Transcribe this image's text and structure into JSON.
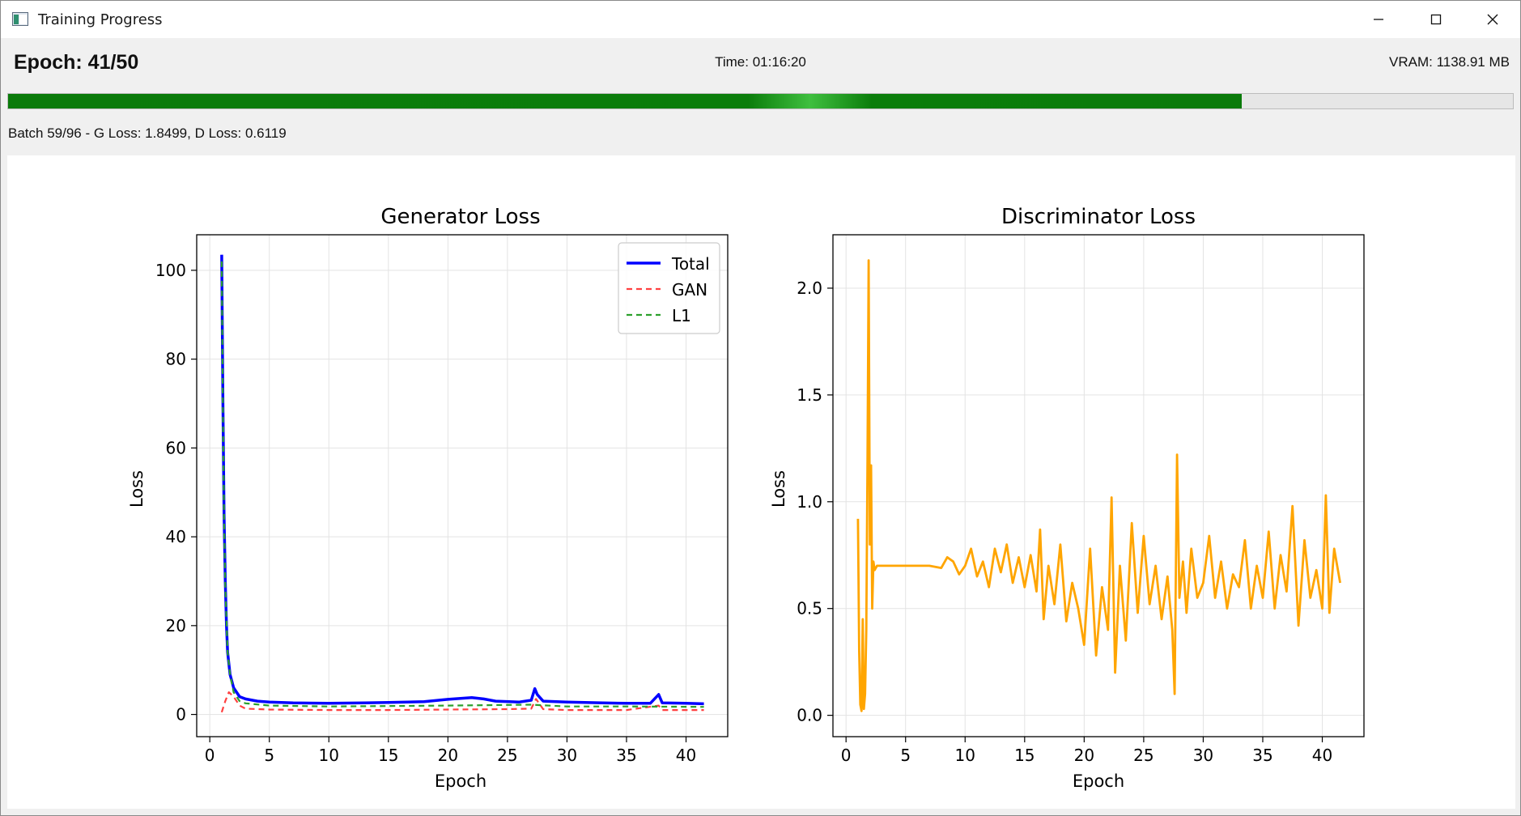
{
  "window": {
    "title": "Training Progress",
    "icon": "app-window-icon"
  },
  "status": {
    "epoch": "Epoch: 41/50",
    "time": "Time: 01:16:20",
    "vram": "VRAM: 1138.91 MB",
    "batch": "Batch 59/96 - G Loss: 1.8499, D Loss: 0.6119",
    "progress_fraction": 0.82
  },
  "colors": {
    "progress": "#0a7a0a",
    "total": "#0000ff",
    "gan": "#ff4040",
    "l1": "#2ca02c",
    "disc": "#ffa500"
  },
  "chart_data": [
    {
      "type": "line",
      "title": "Generator Loss",
      "xlabel": "Epoch",
      "ylabel": "Loss",
      "xlim": [
        -1.1,
        43.5
      ],
      "ylim": [
        -5,
        108
      ],
      "xticks": [
        0,
        5,
        10,
        15,
        20,
        25,
        30,
        35,
        40
      ],
      "yticks": [
        0,
        20,
        40,
        60,
        80,
        100
      ],
      "grid": true,
      "legend": "top-right",
      "series": [
        {
          "name": "Total",
          "style": "solid",
          "x": [
            1,
            1.1,
            1.2,
            1.3,
            1.4,
            1.5,
            1.7,
            2,
            2.5,
            3,
            4,
            5,
            7,
            10,
            13,
            15,
            18,
            20,
            22,
            23,
            24,
            26,
            27,
            27.3,
            27.5,
            28,
            30,
            33,
            35,
            37,
            37.7,
            38,
            40,
            41.5
          ],
          "y": [
            103.5,
            70,
            45,
            30,
            20,
            14,
            9,
            6,
            4,
            3.5,
            3,
            2.8,
            2.6,
            2.5,
            2.6,
            2.7,
            2.9,
            3.4,
            3.8,
            3.5,
            3.0,
            2.8,
            3.2,
            5.8,
            4.5,
            3.0,
            2.8,
            2.6,
            2.5,
            2.5,
            4.5,
            2.6,
            2.5,
            2.4
          ]
        },
        {
          "name": "GAN",
          "style": "dashed",
          "x": [
            1,
            1.3,
            1.6,
            2,
            2.5,
            3,
            5,
            10,
            15,
            20,
            25,
            27,
            27.4,
            28,
            30,
            35,
            37.7,
            38,
            41.5
          ],
          "y": [
            0.5,
            3,
            5,
            4,
            2,
            1.3,
            1.1,
            1.0,
            1.0,
            1.1,
            1.2,
            1.3,
            3.5,
            1.2,
            1.0,
            1.0,
            2.0,
            1.0,
            1.0
          ]
        },
        {
          "name": "L1",
          "style": "dashed",
          "x": [
            1,
            1.1,
            1.2,
            1.3,
            1.5,
            1.7,
            2,
            2.5,
            3,
            5,
            10,
            20,
            27,
            30,
            35,
            41.5
          ],
          "y": [
            102,
            68,
            44,
            29,
            14,
            9,
            5,
            3,
            2.5,
            2,
            1.8,
            2.0,
            2.2,
            1.8,
            1.8,
            1.7
          ]
        }
      ]
    },
    {
      "type": "line",
      "title": "Discriminator Loss",
      "xlabel": "Epoch",
      "ylabel": "Loss",
      "xlim": [
        -1.1,
        43.5
      ],
      "ylim": [
        -0.1,
        2.25
      ],
      "xticks": [
        0,
        5,
        10,
        15,
        20,
        25,
        30,
        35,
        40
      ],
      "yticks": [
        0.0,
        0.5,
        1.0,
        1.5,
        2.0
      ],
      "grid": true,
      "series": [
        {
          "x": [
            1,
            1.1,
            1.2,
            1.3,
            1.4,
            1.5,
            1.6,
            1.7,
            1.8,
            1.9,
            2.0,
            2.1,
            2.2,
            2.3,
            2.4,
            2.6,
            3,
            4,
            5,
            6,
            7,
            8,
            8.5,
            9,
            9.5,
            10,
            10.5,
            11,
            11.5,
            12,
            12.5,
            13,
            13.5,
            14,
            14.5,
            15,
            15.5,
            16,
            16.3,
            16.6,
            17,
            17.5,
            18,
            18.5,
            19,
            19.5,
            20,
            20.5,
            21,
            21.5,
            22,
            22.3,
            22.6,
            23,
            23.5,
            24,
            24.5,
            25,
            25.5,
            26,
            26.5,
            27,
            27.4,
            27.6,
            27.8,
            28,
            28.3,
            28.6,
            29,
            29.5,
            30,
            30.5,
            31,
            31.5,
            32,
            32.5,
            33,
            33.5,
            34,
            34.5,
            35,
            35.5,
            36,
            36.5,
            37,
            37.5,
            38,
            38.5,
            39,
            39.5,
            40,
            40.3,
            40.6,
            41,
            41.5
          ],
          "y": [
            0.92,
            0.3,
            0.05,
            0.02,
            0.45,
            0.03,
            0.1,
            0.4,
            1.2,
            2.13,
            0.8,
            1.17,
            0.5,
            0.72,
            0.68,
            0.7,
            0.7,
            0.7,
            0.7,
            0.7,
            0.7,
            0.69,
            0.74,
            0.72,
            0.66,
            0.7,
            0.78,
            0.65,
            0.72,
            0.6,
            0.78,
            0.67,
            0.8,
            0.62,
            0.74,
            0.6,
            0.75,
            0.58,
            0.87,
            0.45,
            0.7,
            0.52,
            0.8,
            0.44,
            0.62,
            0.5,
            0.33,
            0.78,
            0.28,
            0.6,
            0.4,
            1.02,
            0.2,
            0.7,
            0.35,
            0.9,
            0.48,
            0.84,
            0.52,
            0.7,
            0.45,
            0.65,
            0.4,
            0.1,
            1.22,
            0.55,
            0.72,
            0.48,
            0.78,
            0.55,
            0.62,
            0.84,
            0.55,
            0.72,
            0.5,
            0.66,
            0.6,
            0.82,
            0.5,
            0.7,
            0.55,
            0.86,
            0.5,
            0.75,
            0.58,
            0.98,
            0.42,
            0.82,
            0.55,
            0.68,
            0.5,
            1.03,
            0.48,
            0.78,
            0.62
          ]
        }
      ]
    }
  ]
}
